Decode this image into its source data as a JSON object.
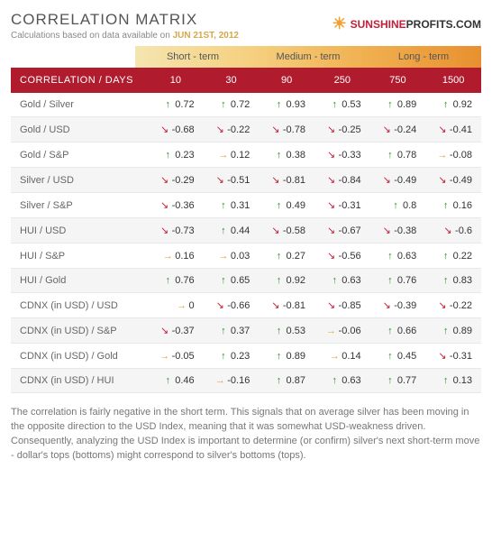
{
  "header": {
    "title": "CORRELATION MATRIX",
    "subtitle_prefix": "Calculations based on data available on",
    "date": "JUN 21ST, 2012",
    "logo_sunshine": "SUNSHINE",
    "logo_profits": "PROFITS.COM"
  },
  "terms": [
    {
      "label": "Short - term",
      "class": "term-short"
    },
    {
      "label": "Medium - term",
      "class": "term-medium"
    },
    {
      "label": "Long - term",
      "class": "term-long"
    }
  ],
  "colors": {
    "header_bg": "#b01c2e",
    "row_alt": "#f5f5f5",
    "arrow_up": "#2e8b2e",
    "arrow_down": "#c41e3a",
    "arrow_flat": "#e0a030"
  },
  "columns_label": "CORRELATION / DAYS",
  "columns": [
    "10",
    "30",
    "90",
    "250",
    "750",
    "1500"
  ],
  "rows": [
    {
      "label": "Gold / Silver",
      "cells": [
        {
          "dir": "up",
          "v": "0.72"
        },
        {
          "dir": "up",
          "v": "0.72"
        },
        {
          "dir": "up",
          "v": "0.93"
        },
        {
          "dir": "up",
          "v": "0.53"
        },
        {
          "dir": "up",
          "v": "0.89"
        },
        {
          "dir": "up",
          "v": "0.92"
        }
      ]
    },
    {
      "label": "Gold / USD",
      "cells": [
        {
          "dir": "down",
          "v": "-0.68"
        },
        {
          "dir": "down",
          "v": "-0.22"
        },
        {
          "dir": "down",
          "v": "-0.78"
        },
        {
          "dir": "down",
          "v": "-0.25"
        },
        {
          "dir": "down",
          "v": "-0.24"
        },
        {
          "dir": "down",
          "v": "-0.41"
        }
      ]
    },
    {
      "label": "Gold / S&P",
      "cells": [
        {
          "dir": "up",
          "v": "0.23"
        },
        {
          "dir": "flat",
          "v": "0.12"
        },
        {
          "dir": "up",
          "v": "0.38"
        },
        {
          "dir": "down",
          "v": "-0.33"
        },
        {
          "dir": "up",
          "v": "0.78"
        },
        {
          "dir": "flat",
          "v": "-0.08"
        }
      ]
    },
    {
      "label": "Silver / USD",
      "cells": [
        {
          "dir": "down",
          "v": "-0.29"
        },
        {
          "dir": "down",
          "v": "-0.51"
        },
        {
          "dir": "down",
          "v": "-0.81"
        },
        {
          "dir": "down",
          "v": "-0.84"
        },
        {
          "dir": "down",
          "v": "-0.49"
        },
        {
          "dir": "down",
          "v": "-0.49"
        }
      ]
    },
    {
      "label": "Silver / S&P",
      "cells": [
        {
          "dir": "down",
          "v": "-0.36"
        },
        {
          "dir": "up",
          "v": "0.31"
        },
        {
          "dir": "up",
          "v": "0.49"
        },
        {
          "dir": "down",
          "v": "-0.31"
        },
        {
          "dir": "up",
          "v": "0.8"
        },
        {
          "dir": "up",
          "v": "0.16"
        }
      ]
    },
    {
      "label": "HUI / USD",
      "cells": [
        {
          "dir": "down",
          "v": "-0.73"
        },
        {
          "dir": "up",
          "v": "0.44"
        },
        {
          "dir": "down",
          "v": "-0.58"
        },
        {
          "dir": "down",
          "v": "-0.67"
        },
        {
          "dir": "down",
          "v": "-0.38"
        },
        {
          "dir": "down",
          "v": "-0.6"
        }
      ]
    },
    {
      "label": "HUI / S&P",
      "cells": [
        {
          "dir": "flat",
          "v": "0.16"
        },
        {
          "dir": "flat",
          "v": "0.03"
        },
        {
          "dir": "up",
          "v": "0.27"
        },
        {
          "dir": "down",
          "v": "-0.56"
        },
        {
          "dir": "up",
          "v": "0.63"
        },
        {
          "dir": "up",
          "v": "0.22"
        }
      ]
    },
    {
      "label": "HUI / Gold",
      "cells": [
        {
          "dir": "up",
          "v": "0.76"
        },
        {
          "dir": "up",
          "v": "0.65"
        },
        {
          "dir": "up",
          "v": "0.92"
        },
        {
          "dir": "up",
          "v": "0.63"
        },
        {
          "dir": "up",
          "v": "0.76"
        },
        {
          "dir": "up",
          "v": "0.83"
        }
      ]
    },
    {
      "label": "CDNX (in USD) / USD",
      "cells": [
        {
          "dir": "flat",
          "v": "0"
        },
        {
          "dir": "down",
          "v": "-0.66"
        },
        {
          "dir": "down",
          "v": "-0.81"
        },
        {
          "dir": "down",
          "v": "-0.85"
        },
        {
          "dir": "down",
          "v": "-0.39"
        },
        {
          "dir": "down",
          "v": "-0.22"
        }
      ]
    },
    {
      "label": "CDNX (in USD) / S&P",
      "cells": [
        {
          "dir": "down",
          "v": "-0.37"
        },
        {
          "dir": "up",
          "v": "0.37"
        },
        {
          "dir": "up",
          "v": "0.53"
        },
        {
          "dir": "flat",
          "v": "-0.06"
        },
        {
          "dir": "up",
          "v": "0.66"
        },
        {
          "dir": "up",
          "v": "0.89"
        }
      ]
    },
    {
      "label": "CDNX (in USD) / Gold",
      "cells": [
        {
          "dir": "flat",
          "v": "-0.05"
        },
        {
          "dir": "up",
          "v": "0.23"
        },
        {
          "dir": "up",
          "v": "0.89"
        },
        {
          "dir": "flat",
          "v": "0.14"
        },
        {
          "dir": "up",
          "v": "0.45"
        },
        {
          "dir": "down",
          "v": "-0.31"
        }
      ]
    },
    {
      "label": "CDNX (in USD) / HUI",
      "cells": [
        {
          "dir": "up",
          "v": "0.46"
        },
        {
          "dir": "flat",
          "v": "-0.16"
        },
        {
          "dir": "up",
          "v": "0.87"
        },
        {
          "dir": "up",
          "v": "0.63"
        },
        {
          "dir": "up",
          "v": "0.77"
        },
        {
          "dir": "up",
          "v": "0.13"
        }
      ]
    }
  ],
  "footer": "The correlation is fairly negative in the short term. This signals that on average silver has been moving in the opposite direction to the USD Index, meaning that it was somewhat USD-weakness driven. Consequently, analyzing the USD Index is important to determine (or confirm) silver's next short-term move - dollar's tops (bottoms) might correspond to silver's bottoms (tops)."
}
